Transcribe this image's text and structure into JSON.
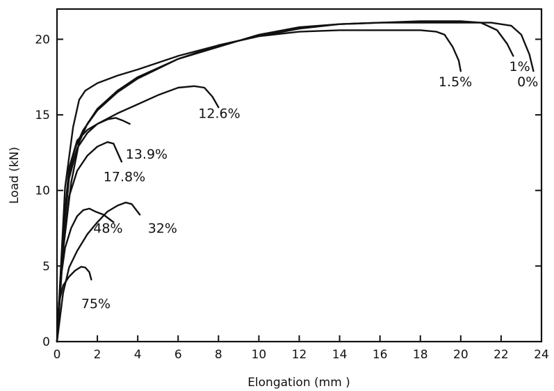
{
  "chart_data": {
    "type": "line",
    "title": "",
    "xlabel": "Elongation (mm )",
    "ylabel": "Load (kN)",
    "xlim": [
      0,
      24
    ],
    "ylim": [
      0,
      22
    ],
    "x_ticks": [
      0,
      2,
      4,
      6,
      8,
      10,
      12,
      14,
      16,
      18,
      20,
      22,
      24
    ],
    "y_ticks": [
      0,
      5,
      10,
      15,
      20
    ],
    "grid": false,
    "legend": "none",
    "series": [
      {
        "name": "0%",
        "x": [
          0,
          0.3,
          0.7,
          1.1,
          1.5,
          2,
          3,
          4,
          6,
          8,
          10,
          12,
          14,
          16,
          18,
          20,
          21.5,
          22.5,
          23.0,
          23.4,
          23.6
        ],
        "y": [
          0,
          6.0,
          10.5,
          13.2,
          14.4,
          15.4,
          16.6,
          17.5,
          18.7,
          19.6,
          20.2,
          20.7,
          21.0,
          21.1,
          21.1,
          21.1,
          21.1,
          20.9,
          20.3,
          19.0,
          17.9
        ]
      },
      {
        "name": "1%",
        "x": [
          0,
          0.3,
          0.6,
          0.9,
          1.3,
          2,
          3,
          4,
          6,
          8,
          10,
          12,
          14,
          16,
          18,
          20,
          21,
          21.8,
          22.3,
          22.6
        ],
        "y": [
          0,
          7.0,
          11.0,
          12.8,
          14.0,
          15.3,
          16.5,
          17.4,
          18.7,
          19.5,
          20.3,
          20.8,
          21.0,
          21.1,
          21.2,
          21.2,
          21.1,
          20.6,
          19.7,
          18.9
        ]
      },
      {
        "name": "1.5%",
        "x": [
          0,
          0.4,
          0.8,
          1.1,
          1.4,
          2,
          3,
          4,
          6,
          8,
          10,
          12,
          14,
          16,
          18,
          18.8,
          19.2,
          19.6,
          19.9,
          20.0
        ],
        "y": [
          0,
          10.2,
          14.2,
          16.0,
          16.6,
          17.1,
          17.6,
          18.0,
          18.9,
          19.6,
          20.2,
          20.5,
          20.6,
          20.6,
          20.6,
          20.5,
          20.3,
          19.5,
          18.6,
          17.9
        ]
      },
      {
        "name": "12.6%",
        "x": [
          0,
          0.3,
          0.6,
          1.0,
          1.5,
          2,
          3,
          4,
          5,
          6,
          6.8,
          7.3,
          7.7,
          8.0
        ],
        "y": [
          0,
          7.2,
          11.5,
          13.3,
          14.0,
          14.4,
          15.1,
          15.7,
          16.3,
          16.8,
          16.9,
          16.8,
          16.2,
          15.5
        ]
      },
      {
        "name": "13.9%",
        "x": [
          0,
          0.3,
          0.6,
          1.0,
          1.5,
          2.0,
          2.5,
          2.9,
          3.3,
          3.6
        ],
        "y": [
          0,
          6.8,
          10.8,
          12.8,
          13.8,
          14.4,
          14.7,
          14.8,
          14.6,
          14.4
        ]
      },
      {
        "name": "17.8%",
        "x": [
          0,
          0.3,
          0.6,
          1.0,
          1.5,
          2.0,
          2.5,
          2.8,
          3.0,
          3.2
        ],
        "y": [
          0,
          6.0,
          9.6,
          11.3,
          12.3,
          12.9,
          13.2,
          13.1,
          12.5,
          11.9
        ]
      },
      {
        "name": "32%",
        "x": [
          0,
          0.3,
          0.6,
          1.0,
          1.5,
          2.0,
          2.5,
          3.0,
          3.4,
          3.7,
          4.1
        ],
        "y": [
          0,
          3.2,
          4.9,
          6.0,
          7.1,
          7.9,
          8.6,
          9.0,
          9.2,
          9.1,
          8.4
        ]
      },
      {
        "name": "48%",
        "x": [
          0,
          0.2,
          0.4,
          0.7,
          1.0,
          1.3,
          1.6,
          1.9,
          2.3,
          2.6,
          2.8
        ],
        "y": [
          0,
          4.3,
          6.2,
          7.5,
          8.3,
          8.7,
          8.8,
          8.6,
          8.4,
          8.1,
          7.9
        ]
      },
      {
        "name": "75%",
        "x": [
          0,
          0.1,
          0.3,
          0.6,
          0.9,
          1.2,
          1.4,
          1.6,
          1.7
        ],
        "y": [
          0,
          2.6,
          3.7,
          4.3,
          4.7,
          4.95,
          4.9,
          4.6,
          4.1
        ]
      }
    ],
    "label_anchor_points": [
      {
        "series": "0%",
        "x": 23.6,
        "y": 17.9,
        "label_at": [
          22.8,
          16.9
        ]
      },
      {
        "series": "1%",
        "x": 22.6,
        "y": 18.9,
        "label_at": [
          22.4,
          17.9
        ]
      },
      {
        "series": "1.5%",
        "x": 20.0,
        "y": 17.9,
        "label_at": [
          18.9,
          16.9
        ]
      },
      {
        "series": "12.6%",
        "x": 8.0,
        "y": 15.5,
        "label_at": [
          7.0,
          14.8
        ]
      },
      {
        "series": "13.9%",
        "x": 3.6,
        "y": 14.4,
        "label_at": [
          3.4,
          12.1
        ]
      },
      {
        "series": "17.8%",
        "x": 3.2,
        "y": 11.9,
        "label_at": [
          2.3,
          10.6
        ]
      },
      {
        "series": "32%",
        "x": 4.1,
        "y": 8.4,
        "label_at": [
          4.5,
          7.2
        ]
      },
      {
        "series": "48%",
        "x": 2.8,
        "y": 7.9,
        "label_at": [
          1.8,
          7.2
        ]
      },
      {
        "series": "75%",
        "x": 1.7,
        "y": 4.1,
        "label_at": [
          1.2,
          2.2
        ]
      }
    ]
  }
}
